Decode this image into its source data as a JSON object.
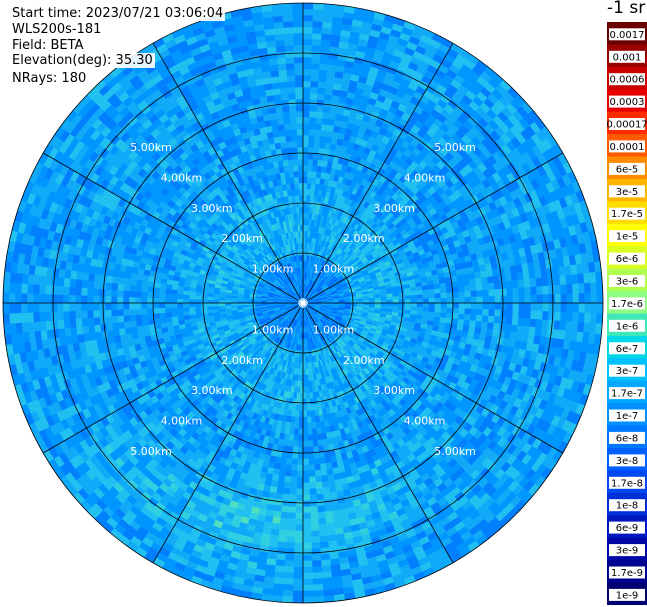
{
  "header": {
    "start_time": "Start time: 2023/07/21 03:06:04",
    "instrument": "WLS200s-181",
    "field": "Field: BETA",
    "elevation": "Elevation(deg): 35.30",
    "nrays": "NRays: 180"
  },
  "colorbar": {
    "unit_label": "-1 sr",
    "ticks": [
      "0.0017",
      "0.001",
      "0.0006",
      "0.0003",
      "0.00017",
      "0.0001",
      "6e-5",
      "3e-5",
      "1.7e-5",
      "1e-5",
      "6e-6",
      "3e-6",
      "1.7e-6",
      "1e-6",
      "6e-7",
      "3e-7",
      "1.7e-7",
      "1e-7",
      "6e-8",
      "3e-8",
      "1.7e-8",
      "1e-8",
      "6e-9",
      "3e-9",
      "1.7e-9",
      "1e-9"
    ],
    "colors": [
      "#6a0000",
      "#990000",
      "#c80000",
      "#e80000",
      "#ff2a00",
      "#ff5a00",
      "#ff8c00",
      "#ffb400",
      "#ffdc00",
      "#ffff00",
      "#d8ff20",
      "#b0ff50",
      "#8cff80",
      "#40e8b8",
      "#00d8e8",
      "#00c0ff",
      "#00a8ff",
      "#0090ff",
      "#0078ff",
      "#0060ff",
      "#0048f0",
      "#0030d8",
      "#0018c0",
      "#0008a8",
      "#000090",
      "#000070"
    ]
  },
  "chart_data": {
    "type": "heatmap",
    "projection": "polar",
    "title": "",
    "field": "BETA",
    "units": "sr^-1",
    "elevation_deg": 35.3,
    "n_rays": 180,
    "range_rings_km": [
      1,
      2,
      3,
      4,
      5
    ],
    "range_labels": [
      "1.00km",
      "2.00km",
      "3.00km",
      "4.00km",
      "5.00km"
    ],
    "max_range_km": 6,
    "radial_lines_deg": [
      0,
      30,
      60,
      90,
      120,
      150,
      180,
      210,
      240,
      270,
      300,
      330
    ],
    "color_scale": "log",
    "color_range": [
      1e-09,
      0.0017
    ],
    "regions": [
      {
        "region": "center",
        "range_km": [
          0,
          1
        ],
        "azimuth_deg": [
          0,
          360
        ],
        "value": 3e-08
      },
      {
        "region": "ring",
        "range_km": [
          1,
          2.3
        ],
        "azimuth_deg": [
          0,
          360
        ],
        "value": 1e-07
      },
      {
        "region": "outer",
        "range_km": [
          2.3,
          6
        ],
        "azimuth_deg": [
          0,
          360
        ],
        "value": 6e-08
      },
      {
        "region": "aerosol-band",
        "range_km": [
          3.3,
          5.6
        ],
        "azimuth_deg": [
          130,
          250
        ],
        "value": 3e-07
      }
    ]
  }
}
